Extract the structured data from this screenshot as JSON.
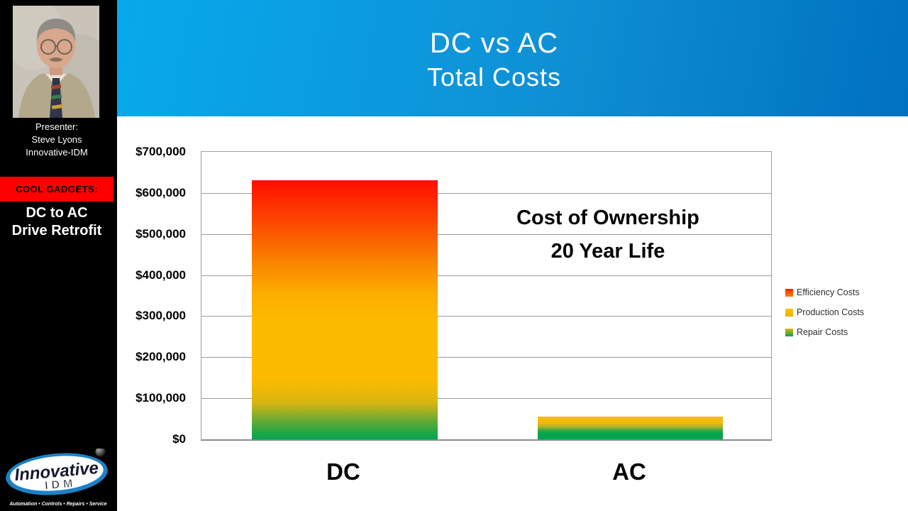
{
  "header": {
    "title_line1": "DC vs AC",
    "title_line2": "Total Costs"
  },
  "sidebar": {
    "presenter_label": "Presenter:",
    "presenter_name": "Steve Lyons",
    "presenter_company": "Innovative-IDM",
    "banner": "COOL GADGETS:",
    "topic_line1": "DC to AC",
    "topic_line2": "Drive Retrofit",
    "logo": {
      "name": "Innovative",
      "sub": "IDM",
      "tagline": "Automation • Controls • Repairs • Service"
    }
  },
  "chart_data": {
    "type": "bar",
    "stacked": true,
    "annotation_line1": "Cost of Ownership",
    "annotation_line2": "20 Year Life",
    "categories": [
      "DC",
      "AC"
    ],
    "series": [
      {
        "name": "Efficiency Costs",
        "color": "#ff2000",
        "color2": "#fb8800",
        "values": [
          250000,
          0
        ]
      },
      {
        "name": "Production Costs",
        "color": "#fdbb00",
        "color2": "#f0ae12",
        "values": [
          350000,
          20000
        ]
      },
      {
        "name": "Repair Costs",
        "color": "#e2b515",
        "color2": "#00a44f",
        "values": [
          30000,
          35000
        ]
      }
    ],
    "totals": [
      630000,
      55000
    ],
    "ylim": [
      0,
      700000
    ],
    "y_tick_step": 100000,
    "y_ticks": [
      "$700,000",
      "$600,000",
      "$500,000",
      "$400,000",
      "$300,000",
      "$200,000",
      "$100,000",
      "$0"
    ],
    "grid": true,
    "legend_position": "right",
    "colors": {
      "grid": "#9b9b9b",
      "axis": "#8a8a8a",
      "header_left": "#07a9ec",
      "header_right": "#0071bf",
      "banner_red": "#fe0000",
      "bar_red_top": "#ff0e00",
      "bar_gold_mid": "#fdbb00",
      "bar_green_bottom": "#00a44f"
    }
  }
}
